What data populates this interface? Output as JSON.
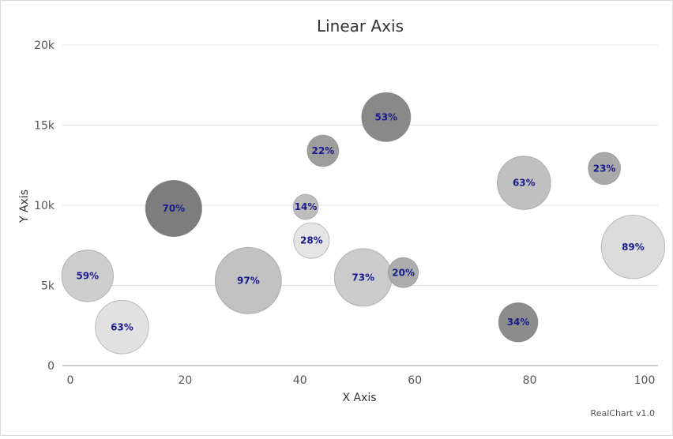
{
  "chart_data": {
    "type": "scatter",
    "title": "Linear Axis",
    "xlabel": "X Axis",
    "ylabel": "Y Axis",
    "xlim": [
      0,
      100
    ],
    "ylim": [
      0,
      20000
    ],
    "x_ticks": [
      "0",
      "20",
      "40",
      "60",
      "80",
      "100"
    ],
    "y_ticks": [
      "0",
      "5k",
      "10k",
      "15k",
      "20k"
    ],
    "x_tick_values": [
      0,
      20,
      40,
      60,
      80,
      100
    ],
    "y_tick_values": [
      0,
      5000,
      10000,
      15000,
      20000
    ],
    "grid": true,
    "points": [
      {
        "x": 3,
        "y": 5600,
        "size": 59,
        "label": "59%",
        "color": "#cecece"
      },
      {
        "x": 9,
        "y": 2400,
        "size": 63,
        "label": "63%",
        "color": "#e1e1e1"
      },
      {
        "x": 18,
        "y": 9800,
        "size": 70,
        "label": "70%",
        "color": "#7d7d7d"
      },
      {
        "x": 31,
        "y": 5300,
        "size": 97,
        "label": "97%",
        "color": "#c2c2c2"
      },
      {
        "x": 41,
        "y": 9900,
        "size": 14,
        "label": "14%",
        "color": "#bdbdbd"
      },
      {
        "x": 42,
        "y": 7800,
        "size": 28,
        "label": "28%",
        "color": "#e5e5e5"
      },
      {
        "x": 44,
        "y": 13400,
        "size": 22,
        "label": "22%",
        "color": "#9d9d9d"
      },
      {
        "x": 51,
        "y": 5500,
        "size": 73,
        "label": "73%",
        "color": "#cbcbcb"
      },
      {
        "x": 55,
        "y": 15500,
        "size": 53,
        "label": "53%",
        "color": "#898989"
      },
      {
        "x": 58,
        "y": 5800,
        "size": 20,
        "label": "20%",
        "color": "#acacac"
      },
      {
        "x": 78,
        "y": 2700,
        "size": 34,
        "label": "34%",
        "color": "#8c8c8c"
      },
      {
        "x": 79,
        "y": 11400,
        "size": 63,
        "label": "63%",
        "color": "#c0c0c0"
      },
      {
        "x": 93,
        "y": 12300,
        "size": 23,
        "label": "23%",
        "color": "#a9a9a9"
      },
      {
        "x": 98,
        "y": 7400,
        "size": 89,
        "label": "89%",
        "color": "#dcdcdc"
      }
    ]
  },
  "credit": "RealChart v1.0"
}
